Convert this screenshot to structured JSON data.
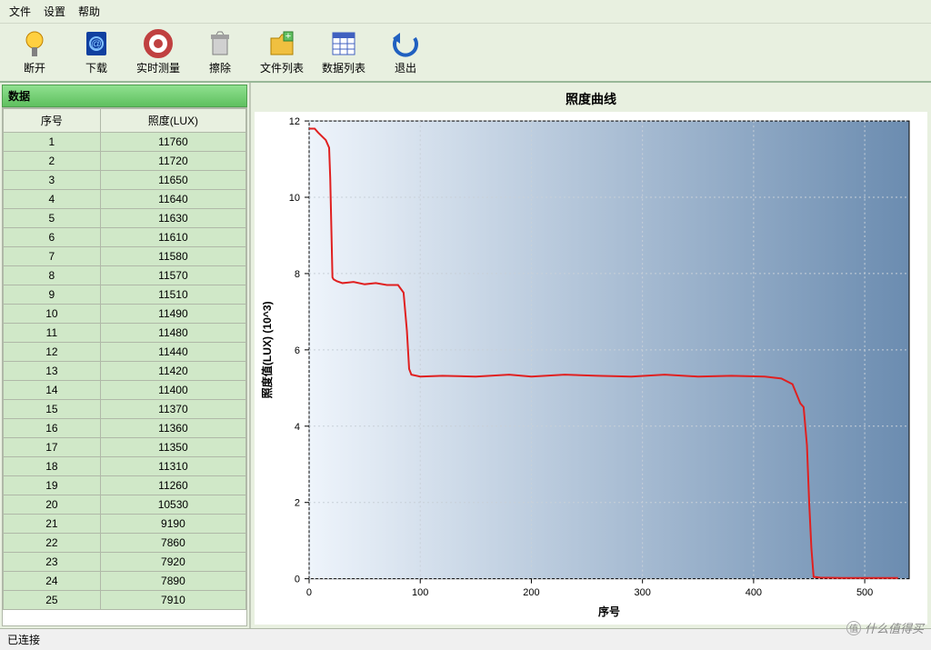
{
  "menu": {
    "file": "文件",
    "settings": "设置",
    "help": "帮助"
  },
  "toolbar": [
    {
      "name": "disconnect-button",
      "label": "断开"
    },
    {
      "name": "download-button",
      "label": "下载"
    },
    {
      "name": "realtime-button",
      "label": "实时测量"
    },
    {
      "name": "erase-button",
      "label": "擦除"
    },
    {
      "name": "filelist-button",
      "label": "文件列表"
    },
    {
      "name": "datalist-button",
      "label": "数据列表"
    },
    {
      "name": "exit-button",
      "label": "退出"
    }
  ],
  "data_panel": {
    "title": "数据",
    "columns": [
      "序号",
      "照度(LUX)"
    ],
    "rows": [
      [
        1,
        11760
      ],
      [
        2,
        11720
      ],
      [
        3,
        11650
      ],
      [
        4,
        11640
      ],
      [
        5,
        11630
      ],
      [
        6,
        11610
      ],
      [
        7,
        11580
      ],
      [
        8,
        11570
      ],
      [
        9,
        11510
      ],
      [
        10,
        11490
      ],
      [
        11,
        11480
      ],
      [
        12,
        11440
      ],
      [
        13,
        11420
      ],
      [
        14,
        11400
      ],
      [
        15,
        11370
      ],
      [
        16,
        11360
      ],
      [
        17,
        11350
      ],
      [
        18,
        11310
      ],
      [
        19,
        11260
      ],
      [
        20,
        10530
      ],
      [
        21,
        9190
      ],
      [
        22,
        7860
      ],
      [
        23,
        7920
      ],
      [
        24,
        7890
      ],
      [
        25,
        7910
      ]
    ],
    "row_bg": "#d0e8c8",
    "header_bg": "#e8f0e0",
    "border_color": "#b0b8a8"
  },
  "chart": {
    "title": "照度曲线",
    "type": "line",
    "xlabel": "序号",
    "ylabel": "照度值(LUX) (10^3)",
    "xlim": [
      0,
      540
    ],
    "ylim": [
      0,
      12
    ],
    "xtick_step": 100,
    "ytick_step": 2,
    "line_color": "#e02020",
    "line_width": 2,
    "grid_color": "#c8d0d8",
    "grid_dash": "2,3",
    "plot_bg_gradient": [
      "#eef4fb",
      "#6b8cb0"
    ],
    "axis_color": "#000000",
    "label_fontsize": 12,
    "tick_fontsize": 11,
    "title_fontsize": 14,
    "series": [
      {
        "x": 0,
        "y": 11.8
      },
      {
        "x": 5,
        "y": 11.8
      },
      {
        "x": 8,
        "y": 11.7
      },
      {
        "x": 15,
        "y": 11.5
      },
      {
        "x": 18,
        "y": 11.3
      },
      {
        "x": 19,
        "y": 10.5
      },
      {
        "x": 20,
        "y": 9.2
      },
      {
        "x": 21,
        "y": 7.9
      },
      {
        "x": 22,
        "y": 7.85
      },
      {
        "x": 25,
        "y": 7.8
      },
      {
        "x": 30,
        "y": 7.75
      },
      {
        "x": 40,
        "y": 7.78
      },
      {
        "x": 50,
        "y": 7.72
      },
      {
        "x": 60,
        "y": 7.75
      },
      {
        "x": 70,
        "y": 7.7
      },
      {
        "x": 80,
        "y": 7.7
      },
      {
        "x": 85,
        "y": 7.5
      },
      {
        "x": 88,
        "y": 6.5
      },
      {
        "x": 90,
        "y": 5.5
      },
      {
        "x": 92,
        "y": 5.35
      },
      {
        "x": 100,
        "y": 5.3
      },
      {
        "x": 120,
        "y": 5.32
      },
      {
        "x": 150,
        "y": 5.3
      },
      {
        "x": 180,
        "y": 5.35
      },
      {
        "x": 200,
        "y": 5.3
      },
      {
        "x": 230,
        "y": 5.35
      },
      {
        "x": 260,
        "y": 5.32
      },
      {
        "x": 290,
        "y": 5.3
      },
      {
        "x": 320,
        "y": 5.35
      },
      {
        "x": 350,
        "y": 5.3
      },
      {
        "x": 380,
        "y": 5.32
      },
      {
        "x": 410,
        "y": 5.3
      },
      {
        "x": 425,
        "y": 5.25
      },
      {
        "x": 435,
        "y": 5.1
      },
      {
        "x": 442,
        "y": 4.6
      },
      {
        "x": 445,
        "y": 4.5
      },
      {
        "x": 448,
        "y": 3.5
      },
      {
        "x": 450,
        "y": 2.0
      },
      {
        "x": 452,
        "y": 0.8
      },
      {
        "x": 454,
        "y": 0.05
      },
      {
        "x": 460,
        "y": 0.03
      },
      {
        "x": 480,
        "y": 0.02
      },
      {
        "x": 500,
        "y": 0.02
      },
      {
        "x": 530,
        "y": 0.02
      }
    ]
  },
  "status": {
    "text": "已连接"
  },
  "watermark": {
    "text": "什么值得买"
  },
  "colors": {
    "app_bg": "#e8f0e0",
    "pane_header_bg": "#6fcf6f"
  }
}
